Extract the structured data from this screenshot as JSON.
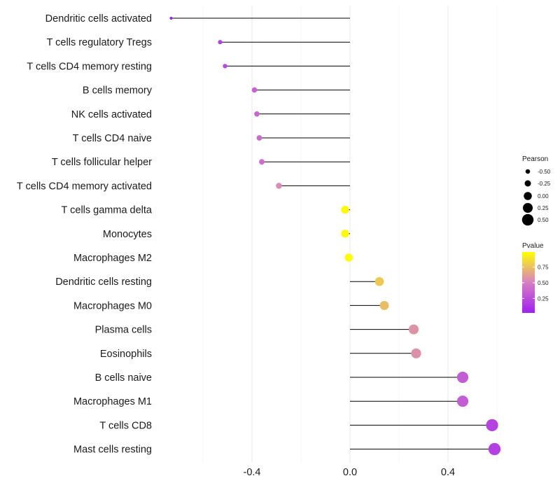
{
  "chart_data": {
    "type": "lollipop",
    "title": "",
    "xlabel": "",
    "ylabel": "",
    "xlim": [
      -0.72,
      0.61
    ],
    "x_ticks": [
      -0.4,
      0.0,
      0.4
    ],
    "x_tick_labels": [
      "-0.4",
      "0.0",
      "0.4"
    ],
    "grid": true,
    "points": [
      {
        "label": "Dendritic cells activated",
        "value": -0.73,
        "pvalue": 0.02
      },
      {
        "label": "T cells regulatory  Tregs",
        "value": -0.53,
        "pvalue": 0.2
      },
      {
        "label": "T cells CD4 memory resting",
        "value": -0.51,
        "pvalue": 0.22
      },
      {
        "label": "B cells memory",
        "value": -0.39,
        "pvalue": 0.36
      },
      {
        "label": "NK cells activated",
        "value": -0.38,
        "pvalue": 0.38
      },
      {
        "label": "T cells CD4 naive",
        "value": -0.37,
        "pvalue": 0.4
      },
      {
        "label": "T cells follicular helper",
        "value": -0.36,
        "pvalue": 0.42
      },
      {
        "label": "T cells CD4 memory activated",
        "value": -0.29,
        "pvalue": 0.55
      },
      {
        "label": "T cells gamma delta",
        "value": -0.02,
        "pvalue": 0.97
      },
      {
        "label": "Monocytes",
        "value": -0.02,
        "pvalue": 0.97
      },
      {
        "label": "Macrophages M2",
        "value": -0.005,
        "pvalue": 0.99
      },
      {
        "label": "Dendritic cells resting",
        "value": 0.12,
        "pvalue": 0.78
      },
      {
        "label": "Macrophages M0",
        "value": 0.14,
        "pvalue": 0.74
      },
      {
        "label": "Plasma cells",
        "value": 0.26,
        "pvalue": 0.58
      },
      {
        "label": "Eosinophils",
        "value": 0.27,
        "pvalue": 0.57
      },
      {
        "label": "B cells naive",
        "value": 0.46,
        "pvalue": 0.33
      },
      {
        "label": "Macrophages M1",
        "value": 0.46,
        "pvalue": 0.33
      },
      {
        "label": "T cells CD8",
        "value": 0.58,
        "pvalue": 0.2
      },
      {
        "label": "Mast cells resting",
        "value": 0.59,
        "pvalue": 0.19
      }
    ],
    "legend_size": {
      "title": "Pearson",
      "values": [
        -0.5,
        -0.25,
        0.0,
        0.25,
        0.5
      ],
      "labels": [
        "-0.50",
        "-0.25",
        "0.00",
        "0.25",
        "0.50"
      ],
      "position": "right"
    },
    "legend_color": {
      "title": "Pvalue",
      "ticks": [
        0.25,
        0.5,
        0.75
      ],
      "tick_labels": [
        "0.25",
        "0.50",
        "0.75"
      ],
      "range": [
        0.02,
        0.99
      ],
      "position": "right"
    },
    "colors": {
      "low": "#a020f0",
      "mid": "#d77fc4",
      "high": "#ffff00",
      "stem": "#000000",
      "grid": "#ebebeb"
    }
  }
}
